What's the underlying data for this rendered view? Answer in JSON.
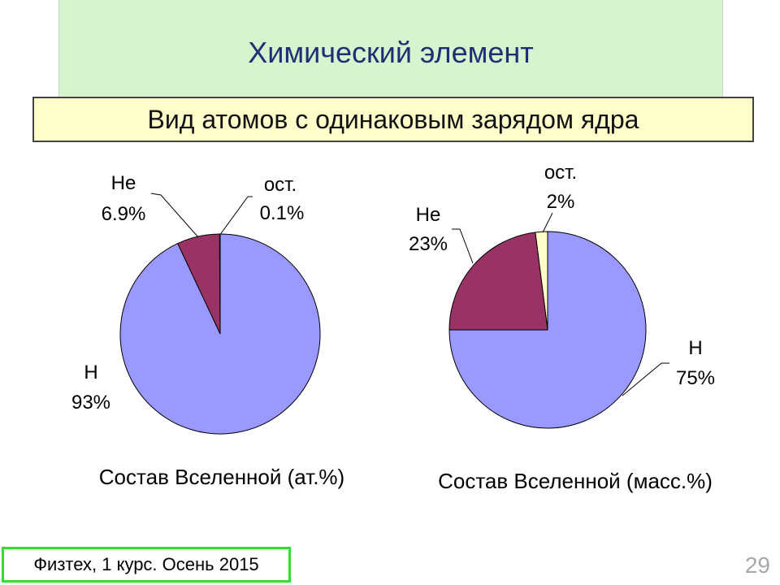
{
  "slide": {
    "title": "Химический элемент",
    "definition": "Вид атомов с одинаковым зарядом ядра",
    "footer": "Физтех, 1 курс. Осень 2015",
    "page_number": "29"
  },
  "colors": {
    "H": "#9999ff",
    "He": "#993366",
    "other": "#ffffcc",
    "title_bg": "#d6f5cf",
    "title_text": "#1f2f73",
    "footer_border": "#33dd33"
  },
  "chart_data": [
    {
      "type": "pie",
      "caption": "Состав Вселенной (ат.%)",
      "slices": [
        {
          "label": "H",
          "value_text": "93%",
          "value": 93,
          "color": "#9999ff"
        },
        {
          "label": "He",
          "value_text": "6.9%",
          "value": 6.9,
          "color": "#993366"
        },
        {
          "label": "ост.",
          "value_text": "0.1%",
          "value": 0.1,
          "color": "#ffffcc"
        }
      ]
    },
    {
      "type": "pie",
      "caption": "Состав Вселенной (масс.%)",
      "slices": [
        {
          "label": "H",
          "value_text": "75%",
          "value": 75,
          "color": "#9999ff"
        },
        {
          "label": "He",
          "value_text": "23%",
          "value": 23,
          "color": "#993366"
        },
        {
          "label": "ост.",
          "value_text": "2%",
          "value": 2,
          "color": "#ffffcc"
        }
      ]
    }
  ]
}
